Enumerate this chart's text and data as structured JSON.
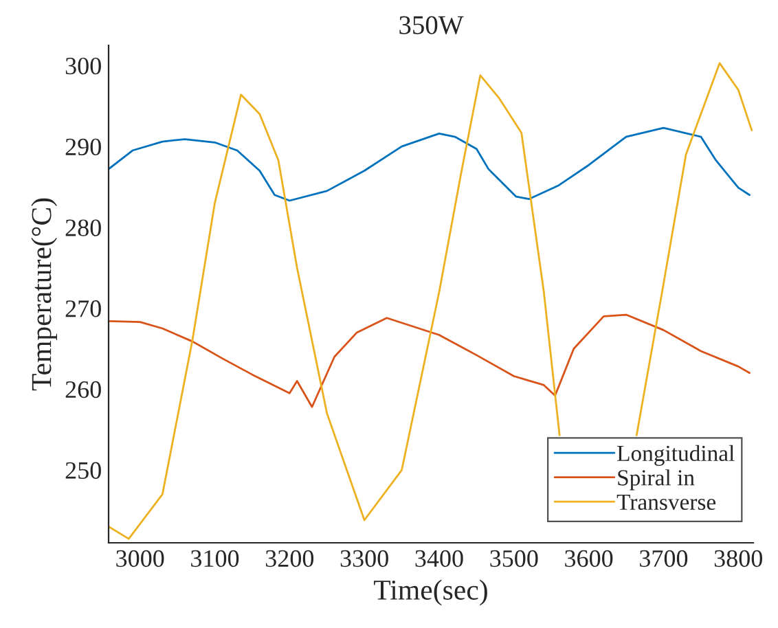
{
  "chart_data": {
    "type": "line",
    "title": "350W",
    "xlabel": "Time(sec)",
    "ylabel": "Temperature(°C)",
    "xlim": [
      2958,
      3820
    ],
    "ylim": [
      241,
      302.5
    ],
    "xticks": [
      3000,
      3100,
      3200,
      3300,
      3400,
      3500,
      3600,
      3700,
      3800
    ],
    "yticks": [
      250,
      260,
      270,
      280,
      290,
      300
    ],
    "grid": false,
    "legend": "bottom right",
    "marker": "none",
    "line_style": "solid",
    "series": [
      {
        "name": "Longitudinal",
        "color": "#0072bd",
        "x": [
          2958,
          2990,
          3030,
          3060,
          3100,
          3130,
          3160,
          3180,
          3200,
          3250,
          3300,
          3350,
          3400,
          3421,
          3450,
          3466,
          3503,
          3520,
          3560,
          3600,
          3650,
          3700,
          3750,
          3770,
          3800,
          3815
        ],
        "values": [
          287.2,
          289.5,
          290.6,
          290.9,
          290.5,
          289.5,
          287,
          284,
          283.3,
          284.5,
          287,
          290,
          291.6,
          291.2,
          289.7,
          287.2,
          283.8,
          283.5,
          285.2,
          287.7,
          291.2,
          292.3,
          291.2,
          288.3,
          284.9,
          284
        ]
      },
      {
        "name": "Spiral in",
        "color": "#d95319",
        "x": [
          2958,
          3000,
          3030,
          3070,
          3110,
          3150,
          3200,
          3210,
          3230,
          3260,
          3290,
          3330,
          3400,
          3450,
          3500,
          3540,
          3555,
          3580,
          3620,
          3650,
          3700,
          3750,
          3800,
          3815
        ],
        "values": [
          268.4,
          268.3,
          267.5,
          265.9,
          263.8,
          261.8,
          259.5,
          261,
          257.8,
          264,
          267,
          268.8,
          266.7,
          264.2,
          261.6,
          260.5,
          259.2,
          265,
          269,
          269.2,
          267.3,
          264.7,
          262.8,
          262
        ]
      },
      {
        "name": "Transverse",
        "color": "#edb120",
        "x": [
          2958,
          2985,
          3030,
          3070,
          3100,
          3135,
          3160,
          3185,
          3210,
          3250,
          3300,
          3350,
          3400,
          3430,
          3455,
          3480,
          3510,
          3540,
          3561,
          3600,
          3640,
          3664,
          3700,
          3730,
          3775,
          3800,
          3818
        ],
        "values": [
          243,
          241.5,
          247,
          266,
          283,
          296.4,
          294,
          288.3,
          275,
          257,
          243.8,
          250,
          272,
          287,
          298.8,
          296,
          291.7,
          272,
          254.3,
          null,
          null,
          254.3,
          273,
          289,
          300.3,
          297,
          292
        ]
      }
    ]
  }
}
